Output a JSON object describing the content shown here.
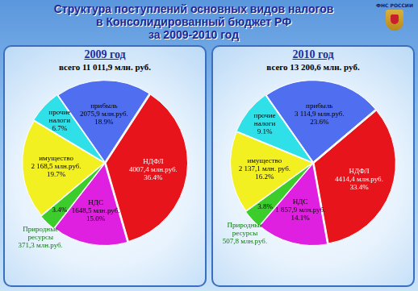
{
  "title": "Структура поступлений основных видов налогов\nв Консолидированный бюджет РФ\nза 2009-2010 год",
  "logo_text": "ФНС РОССИИ",
  "chart_data": [
    {
      "type": "pie",
      "title": "2009 год",
      "subtitle": "всего 11 011,9 млн. руб.",
      "categories": [
        "прибыль",
        "НДФЛ",
        "НДС",
        "Природные ресурсы",
        "имущество",
        "прочие налоги"
      ],
      "values": [
        18.9,
        36.4,
        15.0,
        3.4,
        19.7,
        6.7
      ],
      "value_labels": [
        "18.9%",
        "36.4%",
        "15.0%",
        "3.4%",
        "19.7%",
        "6.7%"
      ],
      "amount_labels": [
        "2075,9 млн.руб.",
        "4007,4 млн.руб.",
        "1648,5 млн.руб.",
        "371,3 млн.руб.",
        "2 168,5 млн.руб.",
        null
      ],
      "colors": [
        "#4f6ef0",
        "#e8141c",
        "#e020e0",
        "#3ccc2c",
        "#f2f020",
        "#30e0e8"
      ],
      "data_labels": true
    },
    {
      "type": "pie",
      "title": "2010 год",
      "subtitle": "всего 13 200,6 млн. руб.",
      "categories": [
        "прибыль",
        "НДФЛ",
        "НДС",
        "Природные ресурсы",
        "имущество",
        "прочие налоги"
      ],
      "values": [
        23.6,
        33.4,
        14.1,
        3.8,
        16.2,
        9.1
      ],
      "value_labels": [
        "23.6%",
        "33.4%",
        "14.1%",
        "3.8%",
        "16.2%",
        "9.1%"
      ],
      "amount_labels": [
        "3 114,9 млн.руб.",
        "4414,4 млн.руб.",
        "1 857,9 млн.руб.",
        "507,8 млн.руб.",
        "2 137,1 млн. руб.",
        null
      ],
      "colors": [
        "#4f6ef0",
        "#e8141c",
        "#e020e0",
        "#3ccc2c",
        "#f2f020",
        "#30e0e8"
      ],
      "data_labels": true
    }
  ]
}
